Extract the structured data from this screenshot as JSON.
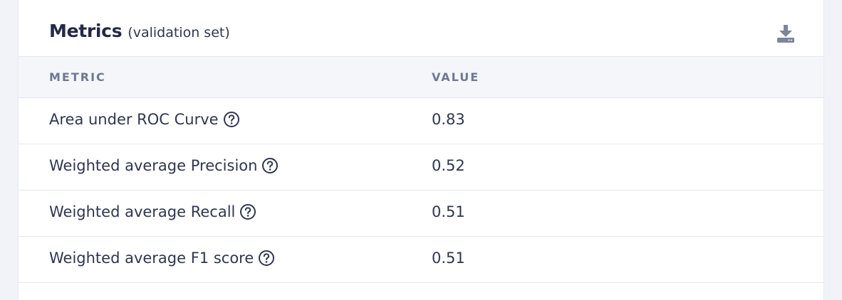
{
  "card": {
    "title": "Metrics",
    "subtitle": "(validation set)",
    "download_icon": "download-icon"
  },
  "table": {
    "headers": {
      "metric": "METRIC",
      "value": "VALUE"
    },
    "rows": [
      {
        "metric": "Area under ROC Curve",
        "value": "0.83",
        "icon": "help-circle-icon"
      },
      {
        "metric": "Weighted average Precision",
        "value": "0.52",
        "icon": "help-circle-icon"
      },
      {
        "metric": "Weighted average Recall",
        "value": "0.51",
        "icon": "help-circle-icon"
      },
      {
        "metric": "Weighted average F1 score",
        "value": "0.51",
        "icon": "help-circle-icon"
      }
    ]
  },
  "colors": {
    "page_background": "#f2f3f8",
    "card_background": "#ffffff",
    "header_row_background": "#f4f6fa",
    "text_primary": "#2f3650",
    "text_header": "#6e7891",
    "icon": "#7d8599"
  }
}
